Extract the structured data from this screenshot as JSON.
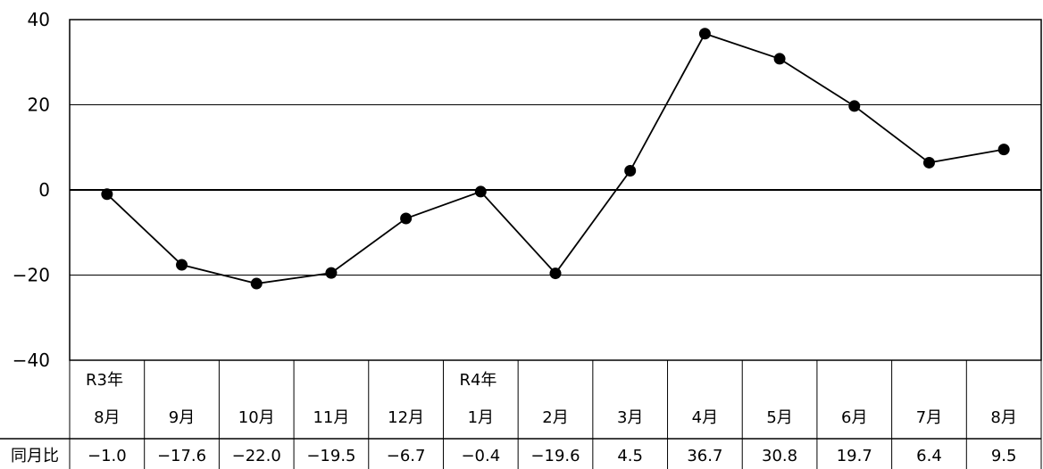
{
  "chart_data": {
    "type": "line",
    "categories": [
      "8月",
      "9月",
      "10月",
      "11月",
      "12月",
      "1月",
      "2月",
      "3月",
      "4月",
      "5月",
      "6月",
      "7月",
      "8月"
    ],
    "year_labels": [
      "R3年",
      "",
      "",
      "",
      "",
      "R4年",
      "",
      "",
      "",
      "",
      "",
      "",
      ""
    ],
    "row_label": "同月比",
    "value_labels": [
      "−1.0",
      "−17.6",
      "−22.0",
      "−19.5",
      "−6.7",
      "−0.4",
      "−19.6",
      "4.5",
      "36.7",
      "30.8",
      "19.7",
      "6.4",
      "9.5"
    ],
    "series": [
      {
        "values": [
          -1.0,
          -17.6,
          -22.0,
          -19.5,
          -6.7,
          -0.4,
          -19.6,
          4.5,
          36.7,
          30.8,
          19.7,
          6.4,
          9.5
        ]
      }
    ],
    "ylim": [
      -40,
      40
    ],
    "yticks": [
      40,
      20,
      0,
      -20,
      -40
    ],
    "ytick_labels": [
      "40",
      "20",
      "0",
      "−20",
      "−40"
    ],
    "grid": true,
    "colors": {
      "line": "#000000",
      "marker": "#000000"
    }
  }
}
